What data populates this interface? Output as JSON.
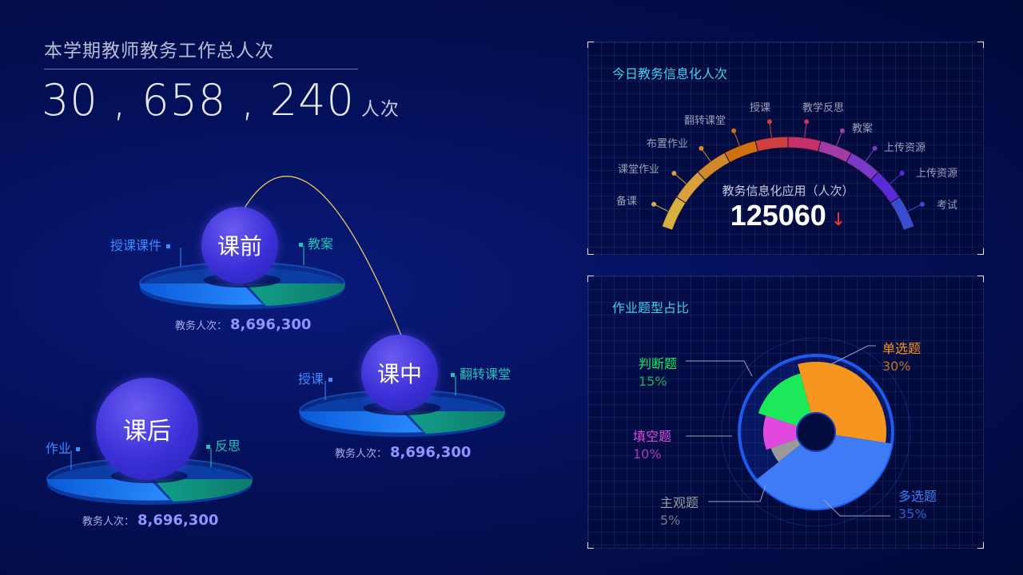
{
  "header": {
    "title": "本学期教师教务工作总人次",
    "total": "30 , 658 , 240",
    "unit": "人次"
  },
  "phases": [
    {
      "name": "课前",
      "left_label": "授课课件",
      "right_label": "教案",
      "count_label": "教务人次：",
      "count": "8,696,300"
    },
    {
      "name": "课中",
      "left_label": "授课",
      "right_label": "翻转课堂",
      "count_label": "教务人次：",
      "count": "8,696,300"
    },
    {
      "name": "课后",
      "left_label": "作业",
      "right_label": "反思",
      "count_label": "教务人次：",
      "count": "8,696,300"
    }
  ],
  "gauge_panel": {
    "title": "今日教务信息化人次",
    "center_label": "教务信息化应用（人次）",
    "value": "125060",
    "trend": "down",
    "trend_icon": "↓",
    "segments": [
      "备课",
      "课堂作业",
      "布置作业",
      "翻转课堂",
      "授课",
      "教学反思",
      "教案",
      "上传资源",
      "上传资源",
      "考试"
    ],
    "colors": [
      "#d8b040",
      "#d9a040",
      "#d08a2c",
      "#d07010",
      "#d04040",
      "#c8306a",
      "#a23aa8",
      "#7a3ac8",
      "#5a2ad8",
      "#3a4cd0"
    ]
  },
  "chart_data": {
    "type": "pie",
    "title": "作业题型占比",
    "categories": [
      "单选题",
      "多选题",
      "主观题",
      "填空题",
      "判断题"
    ],
    "values": [
      30,
      35,
      5,
      10,
      15
    ],
    "labels": [
      "30%",
      "35%",
      "5%",
      "10%",
      "15%"
    ],
    "colors": [
      "#f7961e",
      "#3f7bf5",
      "#9a9a9a",
      "#e048e0",
      "#1de85a"
    ]
  }
}
